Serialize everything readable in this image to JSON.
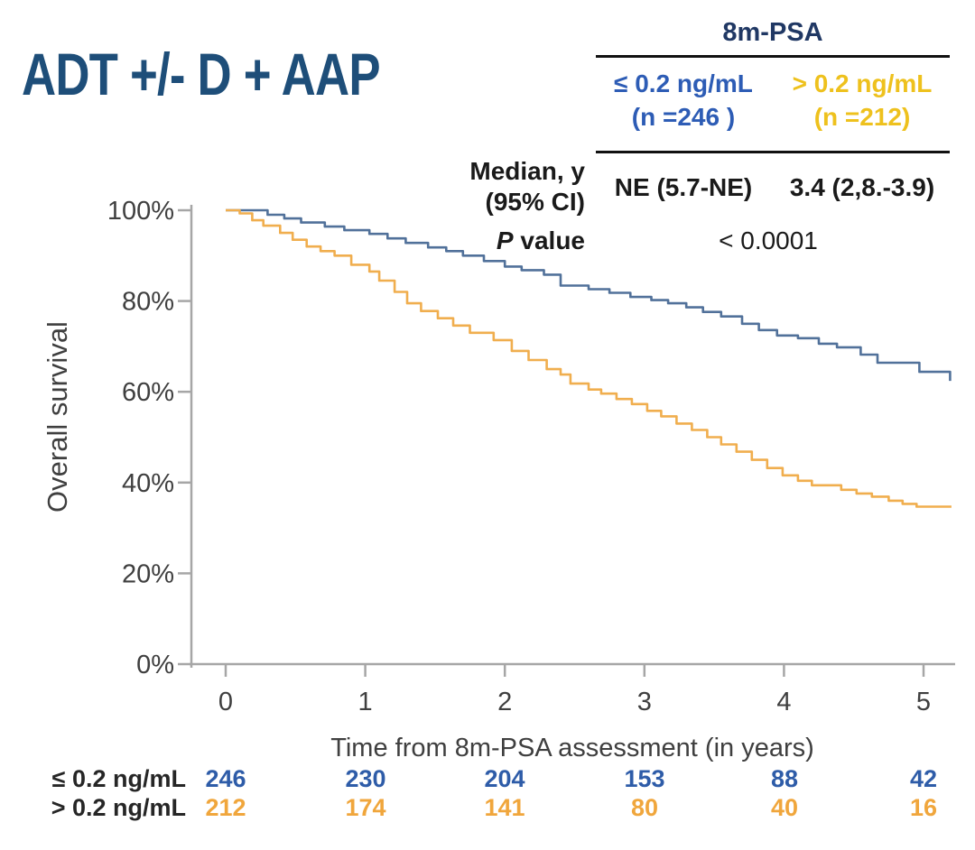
{
  "page_title": "ADT +/- D + AAP",
  "colors": {
    "title": "#1e4e79",
    "table_header": "#203864",
    "group1_text": "#2d5cb5",
    "group2_text": "#eec11d",
    "group1_curve": "#51719a",
    "group2_curve": "#f0ae4e",
    "group1_risk": "#2e5ca8",
    "group2_risk": "#f0a63c",
    "axis": "#a6a6a6",
    "tick_text": "#3f3f3f",
    "stat_text": "#1a1a1a"
  },
  "summary_table": {
    "header": "8m-PSA",
    "columns": [
      {
        "label": "≤ 0.2 ng/mL",
        "n": "(n =246 )"
      },
      {
        "label": "> 0.2 ng/mL",
        "n": "(n =212)"
      }
    ],
    "median_row": {
      "label_line1": "Median, y",
      "label_line2": "(95% CI)",
      "values": [
        "NE (5.7-NE)",
        "3.4 (2,8.-3.9)"
      ]
    },
    "p_row": {
      "label_italic": "P",
      "label_rest": " value",
      "value": "< 0.0001"
    }
  },
  "chart_data": {
    "type": "line",
    "subtype": "kaplan-meier-step",
    "title": "",
    "xlabel": "Time from 8m-PSA assessment (in years)",
    "ylabel": "Overall survival",
    "xlim": [
      0,
      5.2
    ],
    "ylim": [
      0,
      100
    ],
    "xticks": [
      0,
      1,
      2,
      3,
      4,
      5
    ],
    "ytick_values": [
      0,
      20,
      40,
      60,
      80,
      100
    ],
    "ytick_labels": [
      "0%",
      "20%",
      "40%",
      "60%",
      "80%",
      "100%"
    ],
    "grid": false,
    "legend_position": "none",
    "series": [
      {
        "name": "≤ 0.2 ng/mL",
        "color": "#51719a",
        "step": true,
        "points": [
          [
            0,
            100
          ],
          [
            0.3,
            99
          ],
          [
            0.42,
            98.2
          ],
          [
            0.54,
            97.3
          ],
          [
            0.71,
            96.4
          ],
          [
            0.85,
            95.6
          ],
          [
            1.03,
            94.8
          ],
          [
            1.16,
            93.8
          ],
          [
            1.29,
            92.8
          ],
          [
            1.45,
            91.8
          ],
          [
            1.58,
            91.0
          ],
          [
            1.7,
            90.0
          ],
          [
            1.85,
            88.8
          ],
          [
            2.0,
            87.6
          ],
          [
            2.12,
            86.8
          ],
          [
            2.28,
            85.8
          ],
          [
            2.4,
            83.4
          ],
          [
            2.6,
            82.6
          ],
          [
            2.75,
            81.8
          ],
          [
            2.9,
            80.9
          ],
          [
            3.05,
            80.2
          ],
          [
            3.17,
            79.5
          ],
          [
            3.3,
            78.6
          ],
          [
            3.42,
            77.6
          ],
          [
            3.55,
            76.6
          ],
          [
            3.7,
            75.0
          ],
          [
            3.82,
            73.6
          ],
          [
            3.95,
            72.4
          ],
          [
            4.1,
            71.8
          ],
          [
            4.25,
            70.6
          ],
          [
            4.38,
            69.8
          ],
          [
            4.55,
            68.2
          ],
          [
            4.67,
            66.4
          ],
          [
            4.97,
            64.4
          ],
          [
            5.19,
            62.4
          ]
        ]
      },
      {
        "name": "> 0.2 ng/mL",
        "color": "#f0ae4e",
        "step": true,
        "points": [
          [
            0,
            100
          ],
          [
            0.1,
            99.3
          ],
          [
            0.19,
            97.8
          ],
          [
            0.27,
            96.6
          ],
          [
            0.39,
            95.0
          ],
          [
            0.48,
            93.5
          ],
          [
            0.58,
            92.0
          ],
          [
            0.68,
            91.0
          ],
          [
            0.78,
            90.0
          ],
          [
            0.9,
            88.0
          ],
          [
            1.03,
            86.5
          ],
          [
            1.1,
            84.5
          ],
          [
            1.21,
            82.0
          ],
          [
            1.3,
            79.5
          ],
          [
            1.4,
            77.8
          ],
          [
            1.52,
            76.2
          ],
          [
            1.63,
            74.6
          ],
          [
            1.75,
            73.0
          ],
          [
            1.92,
            71.4
          ],
          [
            2.05,
            69.0
          ],
          [
            2.17,
            67.0
          ],
          [
            2.3,
            65.0
          ],
          [
            2.4,
            63.8
          ],
          [
            2.47,
            61.8
          ],
          [
            2.6,
            60.5
          ],
          [
            2.69,
            59.6
          ],
          [
            2.8,
            58.4
          ],
          [
            2.91,
            57.3
          ],
          [
            3.02,
            55.8
          ],
          [
            3.12,
            54.6
          ],
          [
            3.23,
            53.0
          ],
          [
            3.34,
            51.6
          ],
          [
            3.45,
            50.0
          ],
          [
            3.55,
            48.4
          ],
          [
            3.66,
            46.8
          ],
          [
            3.77,
            45.0
          ],
          [
            3.88,
            43.2
          ],
          [
            3.99,
            41.6
          ],
          [
            4.1,
            40.4
          ],
          [
            4.2,
            39.4
          ],
          [
            4.41,
            38.4
          ],
          [
            4.52,
            37.6
          ],
          [
            4.63,
            36.9
          ],
          [
            4.75,
            36.0
          ],
          [
            4.85,
            35.3
          ],
          [
            4.95,
            34.7
          ],
          [
            5.2,
            34.7
          ]
        ]
      }
    ]
  },
  "risk_table": {
    "rows": [
      {
        "label": "≤ 0.2 ng/mL",
        "values": [
          "246",
          "230",
          "204",
          "153",
          "88",
          "42"
        ]
      },
      {
        "label": "> 0.2 ng/mL",
        "values": [
          "212",
          "174",
          "141",
          "80",
          "40",
          "16"
        ]
      }
    ]
  }
}
